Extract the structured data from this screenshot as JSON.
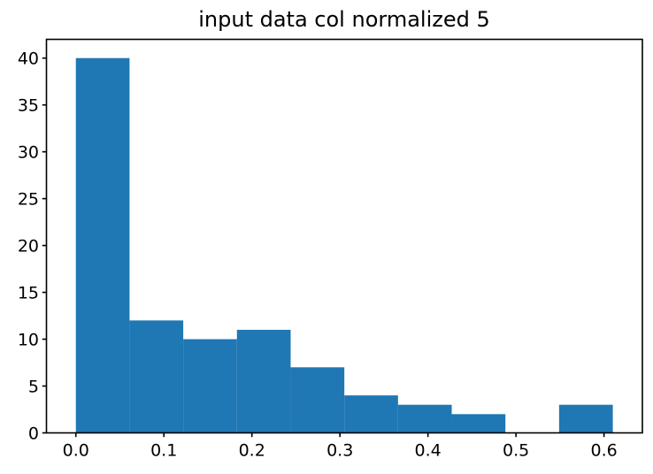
{
  "chart_data": {
    "type": "bar",
    "subtype": "histogram",
    "title": "input data col normalized 5",
    "xlabel": "",
    "ylabel": "",
    "bin_edges": [
      0.0,
      0.061,
      0.122,
      0.183,
      0.244,
      0.305,
      0.366,
      0.427,
      0.488,
      0.549,
      0.61
    ],
    "counts": [
      40,
      12,
      10,
      11,
      7,
      4,
      3,
      2,
      0,
      3
    ],
    "xlim": [
      -0.0334,
      0.6436
    ],
    "ylim": [
      0,
      42
    ],
    "x_ticks": [
      0.0,
      0.1,
      0.2,
      0.3,
      0.4,
      0.5,
      0.6
    ],
    "x_tick_labels": [
      "0.0",
      "0.1",
      "0.2",
      "0.3",
      "0.4",
      "0.5",
      "0.6"
    ],
    "y_ticks": [
      0,
      5,
      10,
      15,
      20,
      25,
      30,
      35,
      40
    ],
    "y_tick_labels": [
      "0",
      "5",
      "10",
      "15",
      "20",
      "25",
      "30",
      "35",
      "40"
    ],
    "bar_color": "#1f77b4",
    "axis_color": "#000000",
    "text_color": "#000000",
    "background_color": "#ffffff",
    "grid": false,
    "legend_position": "none"
  }
}
